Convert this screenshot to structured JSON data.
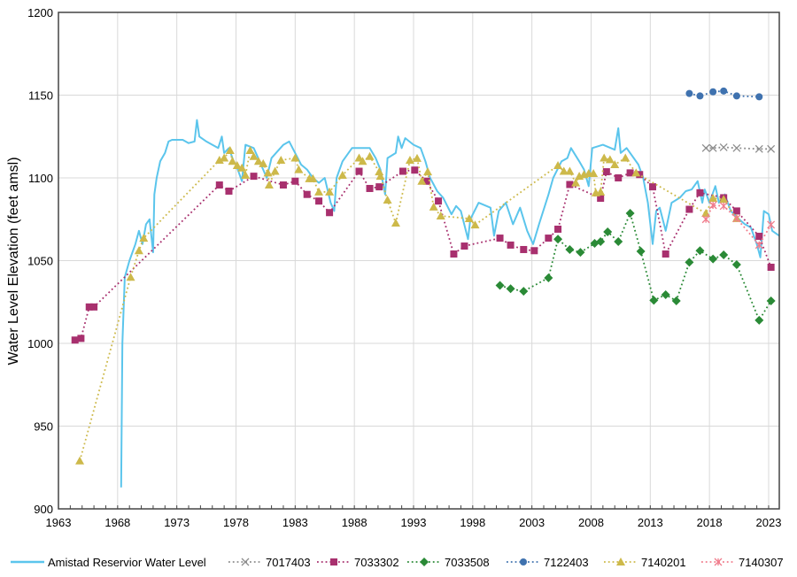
{
  "chart_data": {
    "type": "line",
    "title": "",
    "xlabel": "",
    "ylabel": "Water Level Elevation (feet amsl)",
    "xlim": [
      1963,
      2023.9
    ],
    "ylim": [
      900,
      1200
    ],
    "x_ticks": [
      "1963",
      "1968",
      "1973",
      "1978",
      "1983",
      "1988",
      "1993",
      "1998",
      "2003",
      "2008",
      "2013",
      "2018",
      "2023"
    ],
    "y_ticks": [
      "900",
      "950",
      "1000",
      "1050",
      "1100",
      "1150",
      "1200"
    ],
    "grid": true,
    "legend_position": "bottom",
    "series": [
      {
        "name": "Amistad Reservior Water Level",
        "color": "#5BC5EC",
        "style": "solid",
        "marker": "none",
        "points": [
          [
            1968.3,
            913
          ],
          [
            1968.4,
            1000
          ],
          [
            1968.6,
            1040
          ],
          [
            1969,
            1050
          ],
          [
            1969.5,
            1060
          ],
          [
            1969.8,
            1068
          ],
          [
            1970.1,
            1060
          ],
          [
            1970.4,
            1072
          ],
          [
            1970.7,
            1075
          ],
          [
            1971.0,
            1055
          ],
          [
            1971.1,
            1090
          ],
          [
            1971.3,
            1100
          ],
          [
            1971.6,
            1110
          ],
          [
            1972,
            1115
          ],
          [
            1972.3,
            1122
          ],
          [
            1972.6,
            1123
          ],
          [
            1973.5,
            1123
          ],
          [
            1974,
            1121
          ],
          [
            1974.5,
            1122
          ],
          [
            1974.7,
            1135
          ],
          [
            1974.9,
            1125
          ],
          [
            1975.5,
            1122
          ],
          [
            1976,
            1120
          ],
          [
            1976.5,
            1118
          ],
          [
            1976.8,
            1125
          ],
          [
            1977,
            1115
          ],
          [
            1977.4,
            1118
          ],
          [
            1977.8,
            1110
          ],
          [
            1978,
            1108
          ],
          [
            1978.5,
            1098
          ],
          [
            1978.8,
            1120
          ],
          [
            1979.5,
            1118
          ],
          [
            1980,
            1110
          ],
          [
            1980.6,
            1100
          ],
          [
            1981,
            1112
          ],
          [
            1982,
            1120
          ],
          [
            1982.5,
            1122
          ],
          [
            1983,
            1115
          ],
          [
            1983.5,
            1108
          ],
          [
            1984,
            1105
          ],
          [
            1984.5,
            1100
          ],
          [
            1985,
            1097
          ],
          [
            1985.5,
            1100
          ],
          [
            1986,
            1085
          ],
          [
            1986.3,
            1080
          ],
          [
            1986.5,
            1100
          ],
          [
            1987,
            1110
          ],
          [
            1987.8,
            1118
          ],
          [
            1988.5,
            1118
          ],
          [
            1989.3,
            1118
          ],
          [
            1989.8,
            1112
          ],
          [
            1990.2,
            1105
          ],
          [
            1990.6,
            1090
          ],
          [
            1990.8,
            1112
          ],
          [
            1991.5,
            1115
          ],
          [
            1991.7,
            1125
          ],
          [
            1992,
            1118
          ],
          [
            1992.3,
            1124
          ],
          [
            1993,
            1120
          ],
          [
            1993.6,
            1118
          ],
          [
            1994,
            1110
          ],
          [
            1994.4,
            1100
          ],
          [
            1995,
            1092
          ],
          [
            1995.5,
            1088
          ],
          [
            1996.2,
            1078
          ],
          [
            1996.6,
            1083
          ],
          [
            1997,
            1080
          ],
          [
            1997.6,
            1063
          ],
          [
            1997.8,
            1075
          ],
          [
            1998.5,
            1085
          ],
          [
            1999.5,
            1082
          ],
          [
            1999.8,
            1065
          ],
          [
            2000.2,
            1080
          ],
          [
            2000.8,
            1085
          ],
          [
            2001.4,
            1072
          ],
          [
            2002,
            1082
          ],
          [
            2002.6,
            1068
          ],
          [
            2003.1,
            1060
          ],
          [
            2003.6,
            1072
          ],
          [
            2004.4,
            1090
          ],
          [
            2004.8,
            1100
          ],
          [
            2005.5,
            1110
          ],
          [
            2006,
            1112
          ],
          [
            2006.3,
            1118
          ],
          [
            2007,
            1110
          ],
          [
            2007.4,
            1105
          ],
          [
            2007.8,
            1095
          ],
          [
            2008.1,
            1118
          ],
          [
            2009,
            1120
          ],
          [
            2010,
            1117
          ],
          [
            2010.3,
            1130
          ],
          [
            2010.5,
            1115
          ],
          [
            2011,
            1118
          ],
          [
            2012,
            1108
          ],
          [
            2012.4,
            1100
          ],
          [
            2012.8,
            1085
          ],
          [
            2013.2,
            1060
          ],
          [
            2013.5,
            1080
          ],
          [
            2013.8,
            1082
          ],
          [
            2014.3,
            1068
          ],
          [
            2014.8,
            1085
          ],
          [
            2015.5,
            1088
          ],
          [
            2016,
            1092
          ],
          [
            2016.5,
            1093
          ],
          [
            2017,
            1098
          ],
          [
            2017.4,
            1085
          ],
          [
            2017.6,
            1093
          ],
          [
            2018,
            1085
          ],
          [
            2018.5,
            1095
          ],
          [
            2018.8,
            1085
          ],
          [
            2019.3,
            1090
          ],
          [
            2019.8,
            1080
          ],
          [
            2020.5,
            1075
          ],
          [
            2021,
            1072
          ],
          [
            2021.5,
            1070
          ],
          [
            2022,
            1060
          ],
          [
            2022.3,
            1052
          ],
          [
            2022.6,
            1080
          ],
          [
            2023,
            1078
          ],
          [
            2023.3,
            1068
          ],
          [
            2023.9,
            1065
          ]
        ]
      },
      {
        "name": "7017403",
        "color": "#8C8C8C",
        "style": "dotted",
        "marker": "x",
        "points": [
          [
            2017.7,
            1118
          ],
          [
            2018.3,
            1118
          ],
          [
            2019.2,
            1118.5
          ],
          [
            2020.3,
            1118
          ],
          [
            2022.2,
            1117.5
          ],
          [
            2023.2,
            1117.5
          ]
        ]
      },
      {
        "name": "7033302",
        "color": "#A8306E",
        "style": "dotted",
        "marker": "square",
        "points": [
          [
            1964.4,
            1002
          ],
          [
            1964.9,
            1003
          ],
          [
            1965.6,
            1022
          ],
          [
            1966,
            1022
          ],
          [
            1976.6,
            1095.7
          ],
          [
            1977.4,
            1092
          ],
          [
            1979.5,
            1101
          ],
          [
            1982,
            1095.7
          ],
          [
            1983,
            1098
          ],
          [
            1984,
            1090
          ],
          [
            1985,
            1086
          ],
          [
            1985.9,
            1079
          ],
          [
            1988.4,
            1104
          ],
          [
            1989.3,
            1093.6
          ],
          [
            1990.1,
            1094.6
          ],
          [
            1992.1,
            1104
          ],
          [
            1993.1,
            1104.7
          ],
          [
            1994.1,
            1098
          ],
          [
            1995.1,
            1086
          ],
          [
            1996.4,
            1054
          ],
          [
            1997.3,
            1058.8
          ],
          [
            2000.3,
            1063.6
          ],
          [
            2001.2,
            1059.4
          ],
          [
            2002.3,
            1056.7
          ],
          [
            2003.2,
            1056
          ],
          [
            2004.4,
            1063.6
          ],
          [
            2005.2,
            1069
          ],
          [
            2006.2,
            1096
          ],
          [
            2008.8,
            1087.7
          ],
          [
            2009.3,
            1103.7
          ],
          [
            2010.3,
            1100
          ],
          [
            2011.3,
            1103
          ],
          [
            2012.1,
            1102
          ],
          [
            2013.2,
            1094.6
          ],
          [
            2014.3,
            1054
          ],
          [
            2016.3,
            1081
          ],
          [
            2017.2,
            1091
          ],
          [
            2019.2,
            1088
          ],
          [
            2020.3,
            1080
          ],
          [
            2022.2,
            1064.7
          ],
          [
            2023.2,
            1046
          ]
        ]
      },
      {
        "name": "7033508",
        "color": "#2A8A36",
        "style": "dotted",
        "marker": "diamond",
        "points": [
          [
            2000.3,
            1035
          ],
          [
            2001.2,
            1033
          ],
          [
            2002.3,
            1031.5
          ],
          [
            2004.4,
            1039.6
          ],
          [
            2005.2,
            1063
          ],
          [
            2006.2,
            1056.7
          ],
          [
            2007.1,
            1055
          ],
          [
            2008.3,
            1060.4
          ],
          [
            2008.8,
            1061.5
          ],
          [
            2009.4,
            1067.4
          ],
          [
            2010.3,
            1061.5
          ],
          [
            2011.3,
            1078.6
          ],
          [
            2012.2,
            1055.6
          ],
          [
            2013.3,
            1026
          ],
          [
            2014.3,
            1029.4
          ],
          [
            2015.2,
            1025.7
          ],
          [
            2016.3,
            1049
          ],
          [
            2017.2,
            1056
          ],
          [
            2018.3,
            1051
          ],
          [
            2019.2,
            1053.5
          ],
          [
            2020.3,
            1047.6
          ],
          [
            2022.2,
            1014
          ],
          [
            2023.2,
            1025.7
          ]
        ]
      },
      {
        "name": "7122403",
        "color": "#3F72AF",
        "style": "dotted",
        "marker": "circle",
        "points": [
          [
            2016.3,
            1151
          ],
          [
            2017.2,
            1149.5
          ],
          [
            2018.3,
            1152
          ],
          [
            2019.2,
            1152.5
          ],
          [
            2020.3,
            1149.5
          ],
          [
            2022.2,
            1149
          ]
        ]
      },
      {
        "name": "7140201",
        "color": "#CDB94A",
        "style": "dotted",
        "marker": "triangle",
        "points": [
          [
            1964.8,
            929
          ],
          [
            1969.1,
            1040
          ],
          [
            1969.8,
            1056
          ],
          [
            1970.2,
            1063.6
          ],
          [
            1976.6,
            1110.7
          ],
          [
            1977,
            1112
          ],
          [
            1977.5,
            1116.6
          ],
          [
            1977.7,
            1110
          ],
          [
            1978.1,
            1107.5
          ],
          [
            1978.5,
            1106
          ],
          [
            1978.8,
            1101.6
          ],
          [
            1979.2,
            1116.6
          ],
          [
            1979.5,
            1113
          ],
          [
            1979.9,
            1110
          ],
          [
            1980.3,
            1108.6
          ],
          [
            1980.7,
            1103
          ],
          [
            1980.8,
            1095.7
          ],
          [
            1981.3,
            1104
          ],
          [
            1981.8,
            1110.7
          ],
          [
            1983,
            1112
          ],
          [
            1983.3,
            1105
          ],
          [
            1984.2,
            1099.5
          ],
          [
            1984.5,
            1099.5
          ],
          [
            1985,
            1091.5
          ],
          [
            1985.9,
            1091.5
          ],
          [
            1987,
            1101.6
          ],
          [
            1988.4,
            1112
          ],
          [
            1988.7,
            1110
          ],
          [
            1989.3,
            1113
          ],
          [
            1990.1,
            1103.7
          ],
          [
            1990.2,
            1101
          ],
          [
            1990.8,
            1086.6
          ],
          [
            1991.5,
            1072.7
          ],
          [
            1992.7,
            1110.7
          ],
          [
            1993.3,
            1111.8
          ],
          [
            1993.7,
            1098
          ],
          [
            1994.2,
            1103.7
          ],
          [
            1994.7,
            1082.4
          ],
          [
            1995.3,
            1077
          ],
          [
            1997.7,
            1075.4
          ],
          [
            1998.2,
            1071.6
          ],
          [
            2005.2,
            1107.5
          ],
          [
            2005.7,
            1104
          ],
          [
            2006.2,
            1104
          ],
          [
            2006.7,
            1097
          ],
          [
            2007,
            1101
          ],
          [
            2007.4,
            1102
          ],
          [
            2007.8,
            1102.7
          ],
          [
            2008.2,
            1102.7
          ],
          [
            2008.4,
            1091
          ],
          [
            2008.8,
            1091.5
          ],
          [
            2009.1,
            1112
          ],
          [
            2009.6,
            1111
          ],
          [
            2010,
            1108
          ],
          [
            2010.9,
            1112
          ],
          [
            2011.8,
            1103
          ],
          [
            2017.7,
            1078.6
          ],
          [
            2018.3,
            1087.7
          ],
          [
            2019.2,
            1087
          ],
          [
            2020.3,
            1075.5
          ]
        ]
      },
      {
        "name": "7140307",
        "color": "#F07C8C",
        "style": "dotted",
        "marker": "asterisk",
        "points": [
          [
            2017.7,
            1075
          ],
          [
            2018.3,
            1083.5
          ],
          [
            2019.2,
            1083
          ],
          [
            2020.3,
            1075.5
          ],
          [
            2022.2,
            1059.5
          ],
          [
            2023.2,
            1071.7
          ]
        ]
      }
    ]
  }
}
